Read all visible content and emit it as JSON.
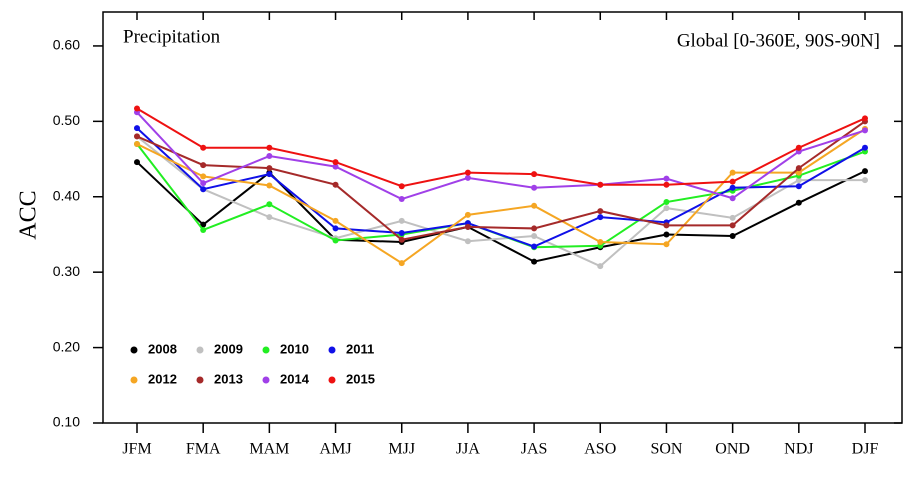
{
  "chart_data": {
    "type": "line",
    "annotations": [
      "Precipitation",
      "Global [0-360E, 90S-90N]"
    ],
    "y_label": "ACC",
    "categories": [
      "JFM",
      "FMA",
      "MAM",
      "AMJ",
      "MJJ",
      "JJA",
      "JAS",
      "ASO",
      "SON",
      "OND",
      "NDJ",
      "DJF"
    ],
    "series": [
      {
        "name": "2008",
        "color": "#000000",
        "values": [
          0.446,
          0.363,
          0.432,
          0.343,
          0.34,
          0.36,
          0.314,
          0.333,
          0.35,
          0.348,
          0.392,
          0.434
        ]
      },
      {
        "name": "2009",
        "color": "#c0c0c0",
        "values": [
          0.48,
          0.41,
          0.373,
          0.345,
          0.368,
          0.341,
          0.348,
          0.308,
          0.385,
          0.372,
          0.422,
          0.422
        ]
      },
      {
        "name": "2010",
        "color": "#22ee22",
        "values": [
          0.47,
          0.356,
          0.39,
          0.342,
          0.35,
          0.365,
          0.333,
          0.335,
          0.393,
          0.408,
          0.428,
          0.46
        ]
      },
      {
        "name": "2011",
        "color": "#1010e8",
        "values": [
          0.491,
          0.41,
          0.43,
          0.358,
          0.352,
          0.365,
          0.334,
          0.373,
          0.366,
          0.412,
          0.414,
          0.465
        ]
      },
      {
        "name": "2012",
        "color": "#f5a623",
        "values": [
          0.47,
          0.427,
          0.415,
          0.368,
          0.312,
          0.376,
          0.388,
          0.34,
          0.337,
          0.432,
          0.432,
          0.49
        ]
      },
      {
        "name": "2013",
        "color": "#a52a2a",
        "values": [
          0.48,
          0.442,
          0.438,
          0.416,
          0.343,
          0.36,
          0.358,
          0.381,
          0.362,
          0.362,
          0.438,
          0.5
        ]
      },
      {
        "name": "2014",
        "color": "#a040e8",
        "values": [
          0.512,
          0.418,
          0.454,
          0.44,
          0.397,
          0.425,
          0.412,
          0.416,
          0.424,
          0.398,
          0.46,
          0.488
        ]
      },
      {
        "name": "2015",
        "color": "#ee1111",
        "values": [
          0.517,
          0.465,
          0.465,
          0.446,
          0.414,
          0.432,
          0.43,
          0.416,
          0.416,
          0.42,
          0.465,
          0.504
        ]
      }
    ],
    "ylim": [
      0.1,
      0.645
    ],
    "yticks": [
      {
        "value": 0.1,
        "label": "0.10"
      },
      {
        "value": 0.2,
        "label": "0.20"
      },
      {
        "value": 0.3,
        "label": "0.30"
      },
      {
        "value": 0.4,
        "label": "0.40"
      },
      {
        "value": 0.5,
        "label": "0.50"
      },
      {
        "value": 0.6,
        "label": "0.60"
      }
    ],
    "grid": false,
    "legend": "lower-left"
  }
}
